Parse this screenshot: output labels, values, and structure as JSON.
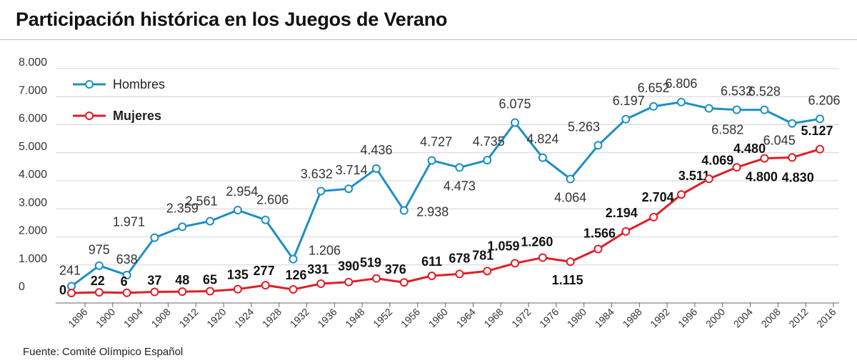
{
  "chart_data": {
    "type": "line",
    "title": "Participación histórica en los Juegos de Verano",
    "source": "Fuente: Comité Olímpico Español",
    "categories": [
      "1896",
      "1900",
      "1904",
      "1908",
      "1912",
      "1920",
      "1924",
      "1928",
      "1932",
      "1936",
      "1948",
      "1952",
      "1956",
      "1960",
      "1964",
      "1968",
      "1972",
      "1976",
      "1980",
      "1984",
      "1988",
      "1992",
      "1996",
      "2000",
      "2004",
      "2008",
      "2012",
      "2016"
    ],
    "yticks": [
      "0",
      "1.000",
      "2.000",
      "3.000",
      "4.000",
      "5.000",
      "6.000",
      "7.000",
      "8.000"
    ],
    "ylim": [
      0,
      8000
    ],
    "grid": true,
    "legend_position": "top-left",
    "series": [
      {
        "name": "Hombres",
        "color": "#1f8fc2",
        "values": [
          241,
          975,
          638,
          1971,
          2359,
          2561,
          2954,
          2606,
          1206,
          3632,
          3714,
          4436,
          2938,
          4727,
          4473,
          4735,
          6075,
          4824,
          4064,
          5263,
          6197,
          6652,
          6806,
          6582,
          6532,
          6528,
          6045,
          6206
        ],
        "labels": [
          "241",
          "975",
          "638",
          "1.971",
          "2.359",
          "2.561",
          "2.954",
          "2.606",
          "1.206",
          "3.632",
          "3.714",
          "4.436",
          "2.938",
          "4.727",
          "4.473",
          "4.735",
          "6.075",
          "4.824",
          "4.064",
          "5.263",
          "6.197",
          "6.652",
          "6.806",
          "6.582",
          "6.532",
          "6.528",
          "6.045",
          "6.206"
        ]
      },
      {
        "name": "Mujeres",
        "color": "#e01e26",
        "values": [
          0,
          22,
          6,
          37,
          48,
          65,
          135,
          277,
          126,
          331,
          390,
          519,
          376,
          611,
          678,
          781,
          1059,
          1260,
          1115,
          1566,
          2194,
          2704,
          3511,
          4069,
          4480,
          4800,
          4830,
          5127
        ],
        "labels": [
          "0",
          "22",
          "6",
          "37",
          "48",
          "65",
          "135",
          "277",
          "126",
          "331",
          "390",
          "519",
          "376",
          "611",
          "678",
          "781",
          "1.059",
          "1.260",
          "1.115",
          "1.566",
          "2.194",
          "2.704",
          "3.511",
          "4.069",
          "4.480",
          "4.800",
          "4.830",
          "5.127"
        ]
      }
    ]
  }
}
